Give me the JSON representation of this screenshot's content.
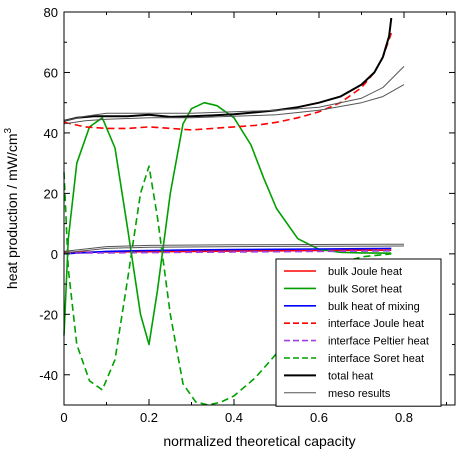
{
  "chart_data": {
    "type": "line",
    "xlabel": "normalized theoretical capacity",
    "ylabel": "heat production / mW/cm",
    "ylabel_superscript": "3",
    "xlim": [
      0,
      0.92
    ],
    "ylim": [
      -50,
      80
    ],
    "x_ticks": [
      "0",
      "0.2",
      "0.4",
      "0.6",
      "0.8"
    ],
    "y_ticks": [
      "80",
      "60",
      "40",
      "20",
      "0",
      "-20",
      "-40"
    ],
    "grid": false,
    "legend_position": "bottom-right",
    "series": [
      {
        "name": "bulk Joule heat",
        "color": "#ff0000",
        "dash": "solid",
        "x": [
          0,
          0.1,
          0.2,
          0.3,
          0.4,
          0.5,
          0.6,
          0.7,
          0.77
        ],
        "y": [
          0.5,
          0.6,
          0.7,
          0.8,
          0.9,
          1.0,
          1.1,
          1.2,
          1.2
        ]
      },
      {
        "name": "bulk Soret heat",
        "color": "#00a000",
        "dash": "solid",
        "x": [
          0,
          0.01,
          0.03,
          0.06,
          0.09,
          0.12,
          0.15,
          0.18,
          0.2,
          0.22,
          0.25,
          0.28,
          0.3,
          0.33,
          0.36,
          0.4,
          0.44,
          0.47,
          0.5,
          0.55,
          0.6,
          0.65,
          0.7,
          0.77
        ],
        "y": [
          -27,
          5,
          30,
          42,
          45,
          35,
          8,
          -20,
          -30,
          -12,
          20,
          43,
          48,
          50,
          49,
          45,
          36,
          25,
          15,
          5,
          1.5,
          0.5,
          0.3,
          0.2
        ]
      },
      {
        "name": "bulk heat of mixing",
        "color": "#0000ff",
        "dash": "solid",
        "x": [
          0,
          0.1,
          0.2,
          0.3,
          0.4,
          0.5,
          0.6,
          0.7,
          0.77
        ],
        "y": [
          0,
          0.8,
          1.1,
          1.3,
          1.4,
          1.5,
          1.6,
          1.7,
          1.8
        ]
      },
      {
        "name": "interface Joule heat",
        "color": "#ff0000",
        "dash": "dashed",
        "x": [
          0,
          0.05,
          0.1,
          0.15,
          0.2,
          0.25,
          0.3,
          0.35,
          0.4,
          0.45,
          0.5,
          0.55,
          0.6,
          0.65,
          0.7,
          0.73,
          0.75,
          0.77
        ],
        "y": [
          43.5,
          42,
          41.5,
          41.5,
          42,
          41.5,
          41,
          41.5,
          42,
          42.5,
          43.5,
          45,
          47,
          50,
          55,
          60,
          65,
          73
        ]
      },
      {
        "name": "interface Peltier heat",
        "color": "#a040e0",
        "dash": "dashed",
        "x": [
          0,
          0.1,
          0.2,
          0.3,
          0.4,
          0.5,
          0.6,
          0.7,
          0.77
        ],
        "y": [
          0.2,
          0.3,
          0.4,
          0.5,
          0.6,
          0.7,
          0.8,
          0.9,
          1.0
        ]
      },
      {
        "name": "interface Soret heat",
        "color": "#00a000",
        "dash": "dashed",
        "x": [
          0,
          0.01,
          0.03,
          0.06,
          0.09,
          0.12,
          0.15,
          0.18,
          0.2,
          0.22,
          0.25,
          0.28,
          0.31,
          0.34,
          0.37,
          0.4,
          0.45,
          0.5,
          0.55,
          0.6,
          0.65,
          0.7,
          0.77
        ],
        "y": [
          27,
          -5,
          -30,
          -42,
          -45,
          -35,
          -8,
          20,
          29,
          12,
          -20,
          -43,
          -49,
          -50,
          -49,
          -47,
          -41,
          -33,
          -22,
          -10,
          -3,
          -1,
          0
        ]
      },
      {
        "name": "total heat",
        "color": "#000000",
        "dash": "solid",
        "width": 2,
        "x": [
          0,
          0.03,
          0.07,
          0.1,
          0.15,
          0.2,
          0.25,
          0.3,
          0.35,
          0.4,
          0.45,
          0.5,
          0.55,
          0.6,
          0.65,
          0.7,
          0.73,
          0.75,
          0.765,
          0.77
        ],
        "y": [
          44,
          45,
          45.5,
          45.5,
          45.5,
          46,
          45.3,
          45.5,
          45.8,
          46.2,
          46.8,
          47.5,
          48.5,
          50,
          52,
          56,
          60,
          65,
          72,
          78
        ]
      },
      {
        "name": "meso results",
        "color": "#555555",
        "dash": "solid",
        "width": 1,
        "x": [
          0,
          0.05,
          0.1,
          0.2,
          0.3,
          0.4,
          0.5,
          0.6,
          0.7,
          0.75,
          0.8
        ],
        "y": [
          43,
          44,
          44.5,
          45,
          45,
          45.5,
          46,
          47.5,
          50,
          52,
          56
        ]
      },
      {
        "name": "",
        "color": "#555555",
        "dash": "solid",
        "width": 1,
        "x": [
          0,
          0.05,
          0.1,
          0.2,
          0.3,
          0.4,
          0.5,
          0.6,
          0.7,
          0.75,
          0.8
        ],
        "y": [
          44,
          45.5,
          46.5,
          46.5,
          46.5,
          47,
          47.5,
          48.5,
          51.5,
          55,
          62
        ]
      },
      {
        "name": "",
        "color": "#555555",
        "dash": "solid",
        "width": 1,
        "x": [
          0,
          0.1,
          0.2,
          0.4,
          0.6,
          0.8
        ],
        "y": [
          0.3,
          1.8,
          2.2,
          2.4,
          2.5,
          2.6
        ]
      },
      {
        "name": "",
        "color": "#555555",
        "dash": "solid",
        "width": 1,
        "x": [
          0,
          0.1,
          0.2,
          0.4,
          0.6,
          0.8
        ],
        "y": [
          0.8,
          2.4,
          2.8,
          3.0,
          3.1,
          3.2
        ]
      }
    ]
  }
}
